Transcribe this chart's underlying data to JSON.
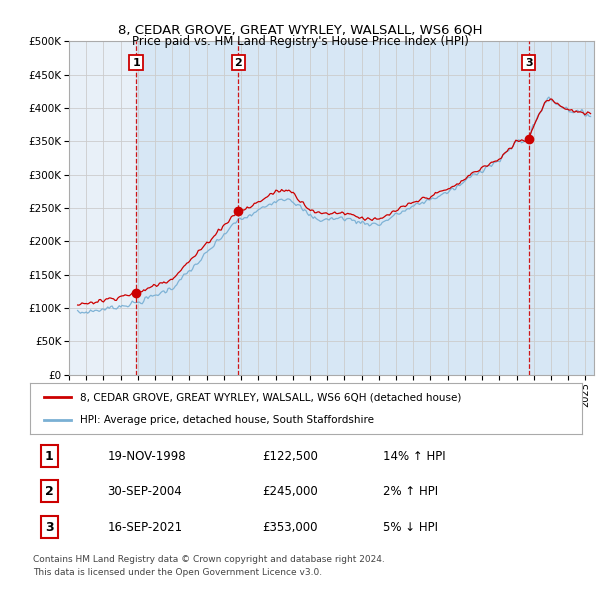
{
  "title": "8, CEDAR GROVE, GREAT WYRLEY, WALSALL, WS6 6QH",
  "subtitle": "Price paid vs. HM Land Registry's House Price Index (HPI)",
  "ylim": [
    0,
    500000
  ],
  "yticks": [
    0,
    50000,
    100000,
    150000,
    200000,
    250000,
    300000,
    350000,
    400000,
    450000,
    500000
  ],
  "ytick_labels": [
    "£0",
    "£50K",
    "£100K",
    "£150K",
    "£200K",
    "£250K",
    "£300K",
    "£350K",
    "£400K",
    "£450K",
    "£500K"
  ],
  "xlim_start": 1995.3,
  "xlim_end": 2025.5,
  "hpi_color": "#7ab0d4",
  "price_color": "#cc0000",
  "vline_color": "#cc0000",
  "background_color": "#ffffff",
  "plot_bg_color": "#e8f0f8",
  "shade_color": "#d0e4f4",
  "grid_color": "#cccccc",
  "sale_events": [
    {
      "label": "1",
      "year": 1998.9,
      "price": 122500,
      "percent": "14%",
      "direction": "↑",
      "date": "19-NOV-1998",
      "price_str": "£122,500"
    },
    {
      "label": "2",
      "year": 2004.83,
      "price": 245000,
      "percent": "2%",
      "direction": "↑",
      "date": "30-SEP-2004",
      "price_str": "£245,000"
    },
    {
      "label": "3",
      "year": 2021.71,
      "price": 353000,
      "percent": "5%",
      "direction": "↓",
      "date": "16-SEP-2021",
      "price_str": "£353,000"
    }
  ],
  "legend_line1": "8, CEDAR GROVE, GREAT WYRLEY, WALSALL, WS6 6QH (detached house)",
  "legend_line2": "HPI: Average price, detached house, South Staffordshire",
  "footer1": "Contains HM Land Registry data © Crown copyright and database right 2024.",
  "footer2": "This data is licensed under the Open Government Licence v3.0.",
  "xtick_years": [
    1995,
    1996,
    1997,
    1998,
    1999,
    2000,
    2001,
    2002,
    2003,
    2004,
    2005,
    2006,
    2007,
    2008,
    2009,
    2010,
    2011,
    2012,
    2013,
    2014,
    2015,
    2016,
    2017,
    2018,
    2019,
    2020,
    2021,
    2022,
    2023,
    2024,
    2025
  ]
}
